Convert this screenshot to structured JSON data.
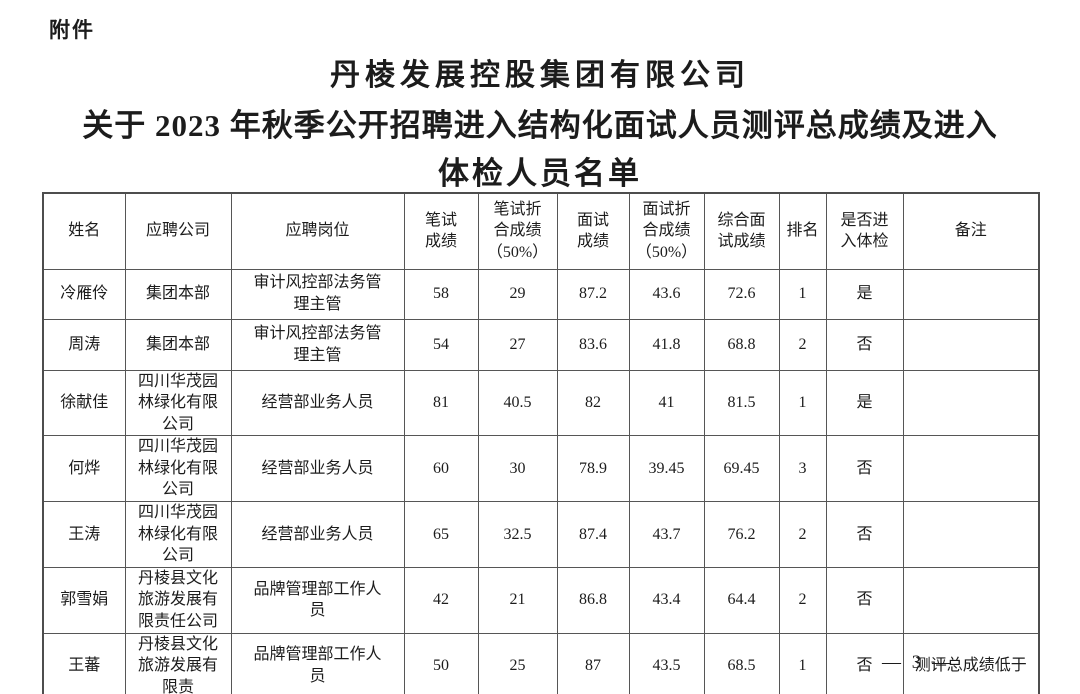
{
  "document": {
    "attachment_label": "附件",
    "title_line1": "丹棱发展控股集团有限公司",
    "title_line2": "关于 2023 年秋季公开招聘进入结构化面试人员测评总成绩及进入",
    "title_line3": "体检人员名单",
    "page_number": "— 3 —"
  },
  "table": {
    "headers": [
      "姓名",
      "应聘公司",
      "应聘岗位",
      "笔试\n成绩",
      "笔试折\n合成绩\n（50%）",
      "面试\n成绩",
      "面试折\n合成绩\n（50%）",
      "综合面\n试成绩",
      "排名",
      "是否进\n入体检",
      "备注"
    ],
    "rows": [
      [
        "冷雁伶",
        "集团本部",
        "审计风控部法务管理主管",
        "58",
        "29",
        "87.2",
        "43.6",
        "72.6",
        "1",
        "是",
        ""
      ],
      [
        "周涛",
        "集团本部",
        "审计风控部法务管理主管",
        "54",
        "27",
        "83.6",
        "41.8",
        "68.8",
        "2",
        "否",
        ""
      ],
      [
        "徐献佳",
        "四川华茂园林绿化有限公司",
        "经营部业务人员",
        "81",
        "40.5",
        "82",
        "41",
        "81.5",
        "1",
        "是",
        ""
      ],
      [
        "何烨",
        "四川华茂园林绿化有限公司",
        "经营部业务人员",
        "60",
        "30",
        "78.9",
        "39.45",
        "69.45",
        "3",
        "否",
        ""
      ],
      [
        "王涛",
        "四川华茂园林绿化有限公司",
        "经营部业务人员",
        "65",
        "32.5",
        "87.4",
        "43.7",
        "76.2",
        "2",
        "否",
        ""
      ],
      [
        "郭雪娟",
        "丹棱县文化旅游发展有限责任公司",
        "品牌管理部工作人员",
        "42",
        "21",
        "86.8",
        "43.4",
        "64.4",
        "2",
        "否",
        ""
      ],
      [
        "王蕃",
        "丹棱县文化旅游发展有限责",
        "品牌管理部工作人员",
        "50",
        "25",
        "87",
        "43.5",
        "68.5",
        "1",
        "否",
        "测评总成绩低于"
      ]
    ]
  }
}
